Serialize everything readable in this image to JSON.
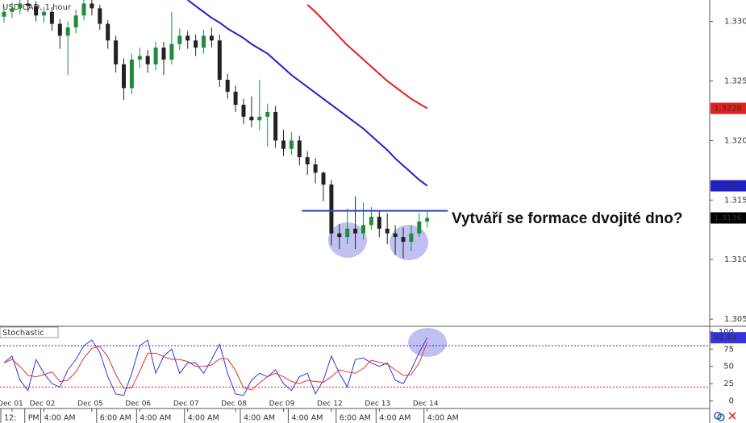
{
  "chart_data": [
    {
      "type": "candlestick",
      "title": "USD/CAD, 1 hour",
      "open": [
        1.3305,
        1.3309,
        1.3312,
        1.3316,
        1.3314,
        1.3306,
        1.3309,
        1.3299,
        1.3289,
        1.3296,
        1.3306,
        1.3316,
        1.3312,
        1.3299,
        1.3285,
        1.3265,
        1.3245,
        1.3269,
        1.3272,
        1.3265,
        1.3279,
        1.3269,
        1.3282,
        1.3289,
        1.3285,
        1.3279,
        1.3289,
        1.3285,
        1.3252,
        1.3242,
        1.3231,
        1.3221,
        1.3218,
        1.3221,
        1.3225,
        1.3201,
        1.3194,
        1.3201,
        1.3187,
        1.3181,
        1.3174,
        1.3164,
        1.3123,
        1.312,
        1.3127,
        1.3123,
        1.313,
        1.3137,
        1.3127,
        1.3123,
        1.312,
        1.3116,
        1.3123,
        1.3133
      ],
      "high": [
        1.3314,
        1.3317,
        1.3319,
        1.3319,
        1.3318,
        1.3313,
        1.3313,
        1.3303,
        1.3301,
        1.3311,
        1.3319,
        1.3319,
        1.3315,
        1.3302,
        1.3289,
        1.327,
        1.3274,
        1.3279,
        1.3277,
        1.3284,
        1.3284,
        1.3309,
        1.3295,
        1.3293,
        1.329,
        1.3294,
        1.3296,
        1.329,
        1.3257,
        1.3247,
        1.3236,
        1.3238,
        1.3252,
        1.3232,
        1.323,
        1.321,
        1.3208,
        1.3205,
        1.3192,
        1.3186,
        1.3175,
        1.3168,
        1.3131,
        1.3144,
        1.3154,
        1.3149,
        1.3145,
        1.3142,
        1.314,
        1.313,
        1.3128,
        1.313,
        1.314,
        1.3142
      ],
      "low": [
        1.33,
        1.3304,
        1.3307,
        1.3309,
        1.3301,
        1.33,
        1.3293,
        1.3278,
        1.3256,
        1.3291,
        1.3302,
        1.3306,
        1.3294,
        1.3278,
        1.3258,
        1.3235,
        1.324,
        1.3262,
        1.3258,
        1.326,
        1.3256,
        1.3265,
        1.3277,
        1.3278,
        1.3272,
        1.3274,
        1.3279,
        1.3246,
        1.3236,
        1.3225,
        1.3215,
        1.3212,
        1.321,
        1.3196,
        1.3195,
        1.3188,
        1.3189,
        1.318,
        1.3172,
        1.3165,
        1.315,
        1.3113,
        1.311,
        1.3114,
        1.311,
        1.3118,
        1.3126,
        1.312,
        1.3114,
        1.3105,
        1.3102,
        1.3108,
        1.312,
        1.3128
      ],
      "close": [
        1.3309,
        1.3312,
        1.3316,
        1.3314,
        1.3306,
        1.3309,
        1.3299,
        1.3289,
        1.3296,
        1.3306,
        1.3316,
        1.3312,
        1.3299,
        1.3285,
        1.3265,
        1.3245,
        1.3269,
        1.3272,
        1.3265,
        1.3279,
        1.3269,
        1.3282,
        1.3289,
        1.3285,
        1.3279,
        1.3289,
        1.3285,
        1.3252,
        1.3242,
        1.3231,
        1.3221,
        1.3218,
        1.3221,
        1.3225,
        1.3201,
        1.3194,
        1.3201,
        1.3187,
        1.3181,
        1.3174,
        1.3164,
        1.3123,
        1.312,
        1.3127,
        1.3123,
        1.313,
        1.3137,
        1.3127,
        1.3123,
        1.312,
        1.3116,
        1.3123,
        1.3133,
        1.3136
      ],
      "color_up": "#1e8c3a",
      "color_down": "#222222",
      "last_color": "#000000",
      "lines": [
        {
          "color": "#1f1fcf",
          "values": [
            null,
            null,
            null,
            null,
            null,
            null,
            null,
            null,
            null,
            null,
            null,
            null,
            null,
            null,
            null,
            null,
            null,
            null,
            null,
            null,
            null,
            null,
            null,
            1.3319,
            1.3314,
            1.3309,
            1.3304,
            1.33,
            1.3295,
            1.3291,
            1.3287,
            1.3282,
            1.3278,
            1.3274,
            1.3268,
            1.3262,
            1.3256,
            1.3251,
            1.3246,
            1.3241,
            1.3236,
            1.3231,
            1.3226,
            1.3221,
            1.3216,
            1.3211,
            1.3205,
            1.3199,
            1.3193,
            1.3186,
            1.318,
            1.3174,
            1.3168,
            1.3163
          ]
        },
        {
          "color": "#e3211c",
          "values": [
            null,
            null,
            null,
            null,
            null,
            null,
            null,
            null,
            null,
            null,
            null,
            null,
            null,
            null,
            null,
            null,
            null,
            null,
            null,
            null,
            null,
            null,
            null,
            null,
            null,
            null,
            null,
            null,
            null,
            null,
            null,
            null,
            null,
            null,
            null,
            null,
            null,
            null,
            1.3315,
            1.3309,
            1.3302,
            1.3295,
            1.3288,
            1.3281,
            1.3275,
            1.3269,
            1.3263,
            1.3257,
            1.3251,
            1.3246,
            1.3241,
            1.3236,
            1.3232,
            1.3228
          ]
        }
      ],
      "hline": {
        "value": 1.3142,
        "color": "#3344cc"
      },
      "annotation": "Vytváří se formace dvojité dno?",
      "ylim": [
        1.3045,
        1.3319
      ],
      "yticks": [
        1.3301,
        1.3251,
        1.3201,
        1.3151,
        1.3101,
        1.3051
      ]
    },
    {
      "type": "line",
      "title": "Stochastic",
      "series": [
        {
          "color": "#3535dd",
          "values": [
            55,
            65,
            30,
            15,
            60,
            40,
            25,
            20,
            45,
            60,
            80,
            88,
            70,
            35,
            10,
            8,
            40,
            80,
            88,
            40,
            65,
            75,
            40,
            55,
            55,
            40,
            60,
            82,
            40,
            10,
            8,
            30,
            40,
            35,
            45,
            25,
            15,
            35,
            40,
            10,
            30,
            65,
            40,
            20,
            60,
            62,
            55,
            50,
            55,
            30,
            25,
            45,
            70,
            91.49
          ]
        },
        {
          "color": "#e03030",
          "values": [
            55,
            60,
            50,
            37,
            35,
            38,
            42,
            28,
            30,
            42,
            62,
            76,
            79,
            64,
            38,
            18,
            19,
            43,
            69,
            69,
            64,
            60,
            60,
            57,
            50,
            50,
            52,
            61,
            61,
            44,
            19,
            16,
            26,
            35,
            40,
            35,
            28,
            25,
            30,
            28,
            27,
            35,
            45,
            42,
            40,
            47,
            59,
            56,
            53,
            45,
            37,
            38,
            55,
            85
          ]
        }
      ],
      "levels": [
        {
          "value": 80,
          "color": "#2c2cc8"
        },
        {
          "value": 20,
          "color": "#d02020"
        }
      ],
      "ylim": [
        -11,
        108
      ],
      "yticks": [
        0,
        25,
        50,
        75,
        100
      ],
      "xticks": [
        {
          "value": 1,
          "label": "Dec 01"
        },
        {
          "value": 5,
          "label": "Dec 02"
        },
        {
          "value": 11,
          "label": "Dec 05"
        },
        {
          "value": 17,
          "label": "Dec 06"
        },
        {
          "value": 23,
          "label": "Dec 07"
        },
        {
          "value": 29,
          "label": "Dec 08"
        },
        {
          "value": 35,
          "label": "Dec 09"
        },
        {
          "value": 41,
          "label": "Dec 12"
        },
        {
          "value": 47,
          "label": "Dec 13"
        },
        {
          "value": 53,
          "label": "Dec 14"
        }
      ],
      "xticks_time": [
        {
          "value": 0,
          "label": "12:"
        },
        {
          "value": 3,
          "label": "PM"
        },
        {
          "value": 5,
          "label": "4:00 AM"
        },
        {
          "value": 12,
          "label": "6:00 AM"
        },
        {
          "value": 17,
          "label": "4:00 AM"
        },
        {
          "value": 23,
          "label": "4:00 AM"
        },
        {
          "value": 30,
          "label": "4:00 AM"
        },
        {
          "value": 36,
          "label": "4:00 AM"
        },
        {
          "value": 42,
          "label": "6:00 AM"
        },
        {
          "value": 47,
          "label": "4:00 AM"
        },
        {
          "value": 53,
          "label": "4:00 AM"
        }
      ]
    }
  ]
}
